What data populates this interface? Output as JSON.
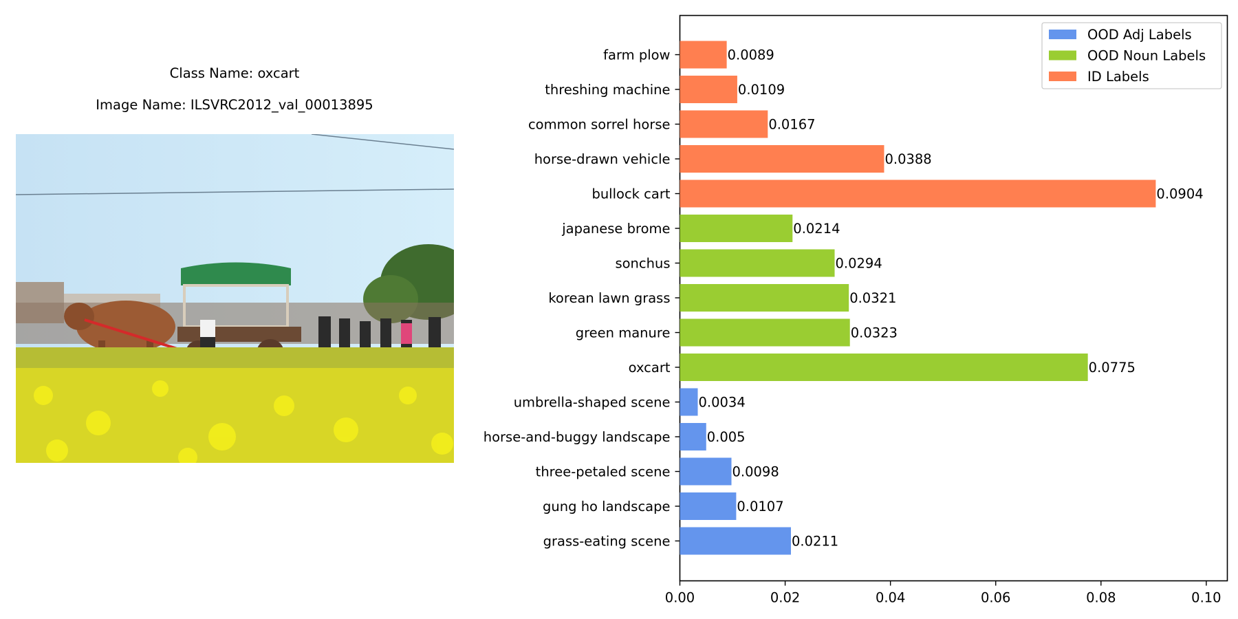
{
  "left_panel": {
    "class_name": "Class Name: oxcart",
    "image_name": "Image Name: ILSVRC2012_val_00013895"
  },
  "chart_data": {
    "type": "bar",
    "orientation": "horizontal",
    "xlim": [
      0,
      0.104
    ],
    "xticks": [
      "0.00",
      "0.02",
      "0.04",
      "0.06",
      "0.08",
      "0.10"
    ],
    "grid": false,
    "legend_position": "top-right",
    "colors": {
      "OOD Adj Labels": "#6495ED",
      "OOD Noun Labels": "#9ACD32",
      "ID Labels": "#FF7F50"
    },
    "legend": [
      "OOD Adj Labels",
      "OOD Noun Labels",
      "ID Labels"
    ],
    "bars": [
      {
        "label": "farm plow",
        "value": 0.0089,
        "value_label": "0.0089",
        "group": "ID Labels"
      },
      {
        "label": "threshing machine",
        "value": 0.0109,
        "value_label": "0.0109",
        "group": "ID Labels"
      },
      {
        "label": "common sorrel horse",
        "value": 0.0167,
        "value_label": "0.0167",
        "group": "ID Labels"
      },
      {
        "label": "horse-drawn vehicle",
        "value": 0.0388,
        "value_label": "0.0388",
        "group": "ID Labels"
      },
      {
        "label": "bullock cart",
        "value": 0.0904,
        "value_label": "0.0904",
        "group": "ID Labels"
      },
      {
        "label": "japanese brome",
        "value": 0.0214,
        "value_label": "0.0214",
        "group": "OOD Noun Labels"
      },
      {
        "label": "sonchus",
        "value": 0.0294,
        "value_label": "0.0294",
        "group": "OOD Noun Labels"
      },
      {
        "label": "korean lawn grass",
        "value": 0.0321,
        "value_label": "0.0321",
        "group": "OOD Noun Labels"
      },
      {
        "label": "green manure",
        "value": 0.0323,
        "value_label": "0.0323",
        "group": "OOD Noun Labels"
      },
      {
        "label": "oxcart",
        "value": 0.0775,
        "value_label": "0.0775",
        "group": "OOD Noun Labels"
      },
      {
        "label": "umbrella-shaped scene",
        "value": 0.0034,
        "value_label": "0.0034",
        "group": "OOD Adj Labels"
      },
      {
        "label": "horse-and-buggy landscape",
        "value": 0.005,
        "value_label": "0.005",
        "group": "OOD Adj Labels"
      },
      {
        "label": "three-petaled scene",
        "value": 0.0098,
        "value_label": "0.0098",
        "group": "OOD Adj Labels"
      },
      {
        "label": "gung ho landscape",
        "value": 0.0107,
        "value_label": "0.0107",
        "group": "OOD Adj Labels"
      },
      {
        "label": "grass-eating scene",
        "value": 0.0211,
        "value_label": "0.0211",
        "group": "OOD Adj Labels"
      }
    ]
  }
}
